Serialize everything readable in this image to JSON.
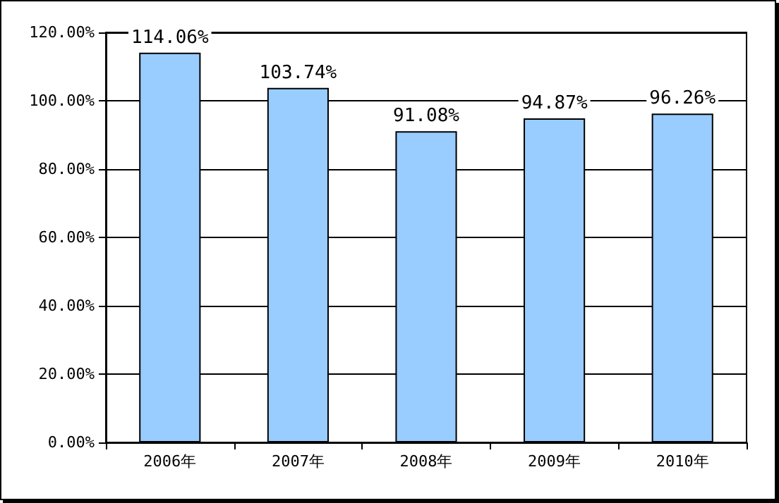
{
  "chart_data": {
    "type": "bar",
    "categories": [
      "2006年",
      "2007年",
      "2008年",
      "2009年",
      "2010年"
    ],
    "values": [
      114.06,
      103.74,
      91.08,
      94.87,
      96.26
    ],
    "value_labels": [
      "114.06%",
      "103.74%",
      "91.08%",
      "94.87%",
      "96.26%"
    ],
    "color": "#99ccff",
    "ylim": [
      0,
      120
    ],
    "yticks": [
      {
        "value": 0,
        "label": "0.00%"
      },
      {
        "value": 20,
        "label": "20.00%"
      },
      {
        "value": 40,
        "label": "40.00%"
      },
      {
        "value": 60,
        "label": "60.00%"
      },
      {
        "value": 80,
        "label": "80.00%"
      },
      {
        "value": 100,
        "label": "100.00%"
      },
      {
        "value": 120,
        "label": "120.00%"
      }
    ],
    "grid": "y"
  }
}
